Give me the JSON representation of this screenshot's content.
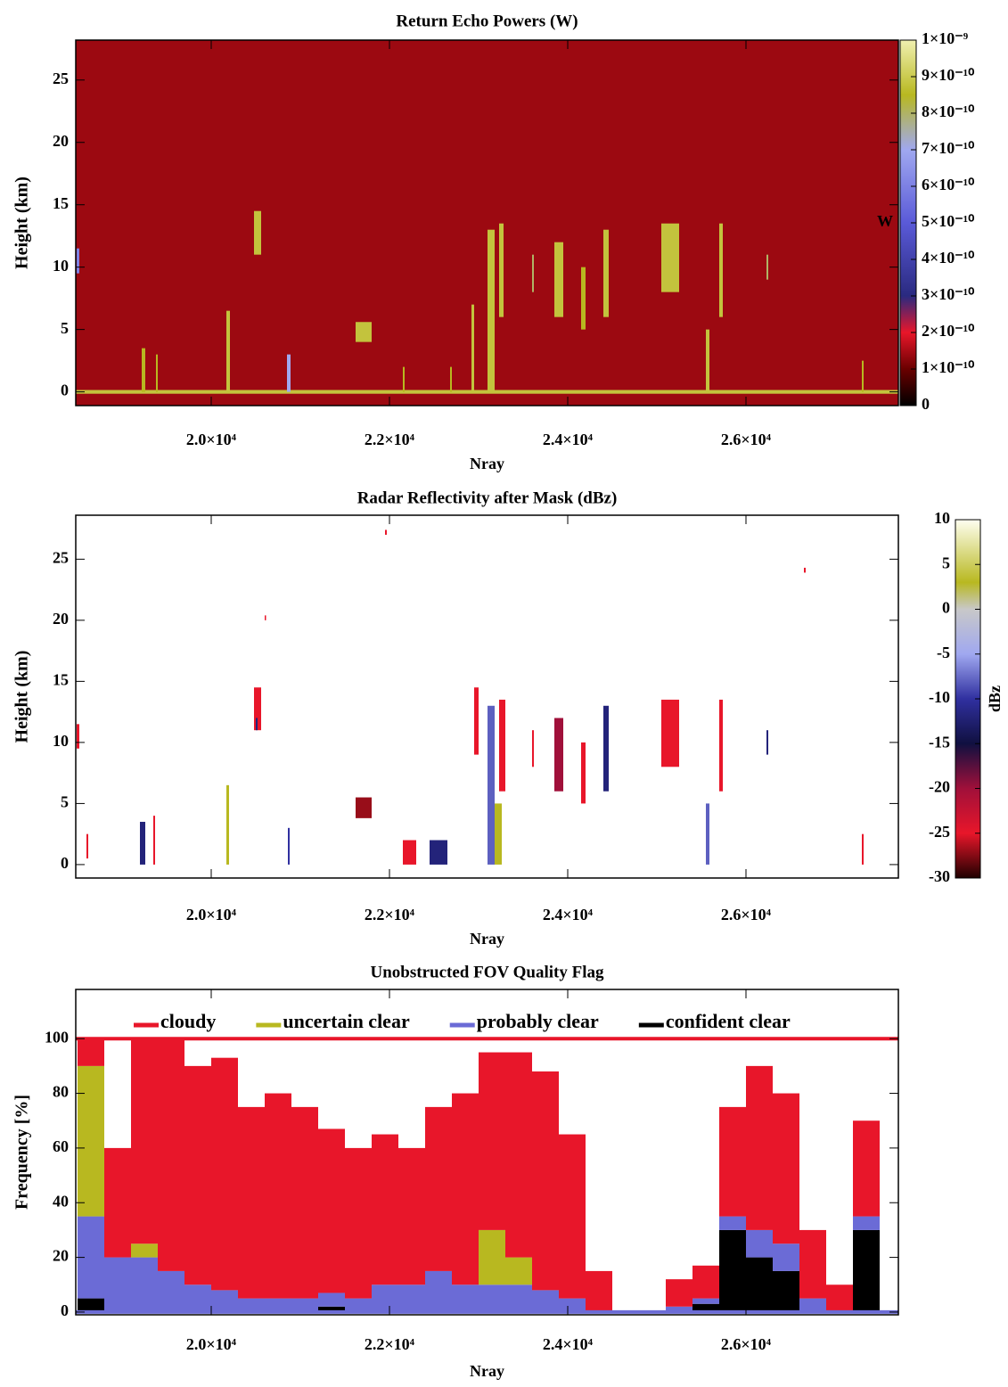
{
  "chart_data": [
    {
      "type": "heatmap",
      "title": "Return Echo Powers  (W)",
      "x_label": "Nray",
      "y_label": "Height (km)",
      "colorbar_label": "W",
      "xlim": [
        18480,
        27710
      ],
      "ylim": [
        -1.1,
        28.2
      ],
      "xticks": [
        {
          "value": 20000,
          "label": "2.0×10⁴"
        },
        {
          "value": 22000,
          "label": "2.2×10⁴"
        },
        {
          "value": 24000,
          "label": "2.4×10⁴"
        },
        {
          "value": 26000,
          "label": "2.6×10⁴"
        }
      ],
      "yticks": [
        0,
        5,
        10,
        15,
        20,
        25
      ],
      "clim": [
        0,
        1e-09
      ],
      "colorbar_ticks": [
        0,
        {
          "value": 1e-10,
          "label": "1×10⁻¹⁰"
        },
        {
          "value": 2e-10,
          "label": "2×10⁻¹⁰"
        },
        {
          "value": 3e-10,
          "label": "3×10⁻¹⁰"
        },
        {
          "value": 4e-10,
          "label": "4×10⁻¹⁰"
        },
        {
          "value": 5e-10,
          "label": "5×10⁻¹⁰"
        },
        {
          "value": 6e-10,
          "label": "6×10⁻¹⁰"
        },
        {
          "value": 7e-10,
          "label": "7×10⁻¹⁰"
        },
        {
          "value": 8e-10,
          "label": "8×10⁻¹⁰"
        },
        {
          "value": 9e-10,
          "label": "9×10⁻¹⁰"
        },
        {
          "value": 1e-09,
          "label": "1×10⁻⁹"
        }
      ],
      "colormap": {
        "values": [
          0,
          1e-10,
          2e-10,
          3e-10,
          5e-10,
          7e-10,
          8.5e-10,
          1e-09
        ],
        "colors": [
          "#000000",
          "#6a0000",
          "#e8162a",
          "#2a2a80",
          "#5a5ad8",
          "#a0a8f0",
          "#b8b820",
          "#f0f0b0"
        ]
      },
      "background": 1.4e-10,
      "cells": [
        [
          18480,
          27710,
          -0.15,
          0.15,
          8.8e-10
        ],
        [
          18490,
          18520,
          9.5,
          11.5,
          6e-10
        ],
        [
          19220,
          19260,
          0,
          3.5,
          8.5e-10
        ],
        [
          19380,
          19400,
          0,
          3,
          8.5e-10
        ],
        [
          20170,
          20210,
          0,
          6.5,
          8.8e-10
        ],
        [
          20480,
          20560,
          11,
          14.5,
          8.8e-10
        ],
        [
          20850,
          20890,
          0,
          3,
          7e-10
        ],
        [
          21620,
          21800,
          4,
          5.6,
          8.8e-10
        ],
        [
          22150,
          22170,
          0,
          2,
          8.5e-10
        ],
        [
          22680,
          22700,
          0,
          2,
          8.5e-10
        ],
        [
          22920,
          22950,
          0,
          7,
          8.8e-10
        ],
        [
          23100,
          23180,
          0,
          13,
          8.8e-10
        ],
        [
          23230,
          23280,
          6,
          13.5,
          8.8e-10
        ],
        [
          23600,
          23620,
          8,
          11,
          8e-10
        ],
        [
          23850,
          23950,
          6,
          12,
          8.8e-10
        ],
        [
          24150,
          24200,
          5,
          10,
          8.5e-10
        ],
        [
          24400,
          24460,
          6,
          13,
          8.8e-10
        ],
        [
          25050,
          25250,
          8,
          13.5,
          8.8e-10
        ],
        [
          25550,
          25590,
          0,
          5,
          8.8e-10
        ],
        [
          25700,
          25740,
          6,
          13.5,
          8.8e-10
        ],
        [
          26230,
          26250,
          9,
          11,
          8e-10
        ],
        [
          27300,
          27320,
          0,
          2.5,
          8.5e-10
        ]
      ]
    },
    {
      "type": "heatmap",
      "title": "Radar Reflectivity after Mask  (dBz)",
      "x_label": "Nray",
      "y_label": "Height (km)",
      "colorbar_label": "dBz",
      "xlim": [
        18480,
        27710
      ],
      "ylim": [
        -1.1,
        28.6
      ],
      "xticks": [
        {
          "value": 20000,
          "label": "2.0×10⁴"
        },
        {
          "value": 22000,
          "label": "2.2×10⁴"
        },
        {
          "value": 24000,
          "label": "2.4×10⁴"
        },
        {
          "value": 26000,
          "label": "2.6×10⁴"
        }
      ],
      "yticks": [
        0,
        5,
        10,
        15,
        20,
        25
      ],
      "clim": [
        -30,
        10
      ],
      "colorbar_ticks": [
        -30,
        -25,
        -20,
        -15,
        -10,
        -5,
        0,
        5,
        10
      ],
      "colormap": {
        "values": [
          -30,
          -25,
          -20,
          -15,
          -10,
          -5,
          0,
          3,
          10
        ],
        "colors": [
          "#200000",
          "#e8162a",
          "#a0103a",
          "#101040",
          "#3030a0",
          "#a0a8f0",
          "#c8c8c8",
          "#b8b820",
          "#fffff0"
        ]
      },
      "cells": [
        [
          18490,
          18520,
          9.5,
          11.5,
          -25
        ],
        [
          18600,
          18620,
          0.5,
          2.5,
          -25
        ],
        [
          19200,
          19260,
          0,
          3.5,
          -12
        ],
        [
          19350,
          19370,
          0,
          4,
          -25
        ],
        [
          20170,
          20200,
          0,
          6.5,
          3
        ],
        [
          20480,
          20560,
          11,
          14.5,
          -25
        ],
        [
          20500,
          20520,
          11,
          12,
          -12
        ],
        [
          20860,
          20880,
          0,
          3,
          -10
        ],
        [
          21620,
          21800,
          3.8,
          5.5,
          -27
        ],
        [
          22150,
          22300,
          0,
          2,
          -25
        ],
        [
          22450,
          22650,
          0,
          2,
          -12
        ],
        [
          22950,
          23000,
          9,
          14.5,
          -25
        ],
        [
          23100,
          23180,
          0,
          13,
          -8
        ],
        [
          23180,
          23260,
          0,
          5,
          3
        ],
        [
          23230,
          23300,
          6,
          13.5,
          -25
        ],
        [
          23600,
          23620,
          8,
          11,
          -25
        ],
        [
          23850,
          23950,
          6,
          12,
          -20
        ],
        [
          24150,
          24200,
          5,
          10,
          -25
        ],
        [
          24400,
          24460,
          6,
          13,
          -12
        ],
        [
          25050,
          25250,
          8,
          13.5,
          -25
        ],
        [
          25550,
          25590,
          0,
          5,
          -8
        ],
        [
          25700,
          25740,
          6,
          13.5,
          -25
        ],
        [
          26230,
          26250,
          9,
          11,
          -12
        ],
        [
          27300,
          27320,
          0,
          2.5,
          -25
        ],
        [
          21950,
          21970,
          27,
          27.4,
          -25
        ],
        [
          26650,
          26670,
          23.9,
          24.3,
          -25
        ],
        [
          20600,
          20610,
          20,
          20.4,
          -25
        ]
      ]
    },
    {
      "type": "histogram",
      "title": "Unobstructed FOV Quality Flag",
      "x_label": "Nray",
      "y_label": "Frequency [%]",
      "xlim": [
        18480,
        27710
      ],
      "ylim": [
        -1,
        118
      ],
      "xticks": [
        {
          "value": 20000,
          "label": "2.0×10⁴"
        },
        {
          "value": 22000,
          "label": "2.2×10⁴"
        },
        {
          "value": 24000,
          "label": "2.4×10⁴"
        },
        {
          "value": 26000,
          "label": "2.6×10⁴"
        }
      ],
      "yticks": [
        0,
        20,
        40,
        60,
        80,
        100
      ],
      "bins": [
        18500,
        18800,
        19100,
        19400,
        19700,
        20000,
        20300,
        20600,
        20900,
        21200,
        21500,
        21800,
        22100,
        22400,
        22700,
        23000,
        23300,
        23600,
        23900,
        24200,
        24500,
        24800,
        25100,
        25400,
        25700,
        26000,
        26300,
        26600,
        26900,
        27200,
        27500
      ],
      "series": [
        {
          "name": "cloudy",
          "color": "#e8162a",
          "values": [
            10,
            40,
            75,
            85,
            80,
            85,
            70,
            75,
            70,
            60,
            55,
            55,
            50,
            60,
            70,
            65,
            75,
            80,
            60,
            15,
            0,
            0,
            10,
            12,
            40,
            60,
            55,
            25,
            10,
            35
          ]
        },
        {
          "name": "uncertain clear",
          "color": "#b8b820",
          "values": [
            55,
            0,
            5,
            0,
            0,
            0,
            0,
            0,
            0,
            0,
            0,
            0,
            0,
            0,
            0,
            20,
            10,
            0,
            0,
            0,
            0,
            0,
            0,
            0,
            0,
            0,
            0,
            0,
            0,
            0
          ]
        },
        {
          "name": "probably clear",
          "color": "#6b6bd6",
          "values": [
            30,
            20,
            20,
            15,
            10,
            8,
            5,
            5,
            5,
            5,
            5,
            10,
            10,
            15,
            10,
            10,
            10,
            8,
            5,
            0,
            0,
            0,
            2,
            2,
            5,
            10,
            10,
            5,
            0,
            5
          ]
        },
        {
          "name": "confident clear",
          "color": "#000000",
          "values": [
            5,
            0,
            0,
            0,
            0,
            0,
            0,
            0,
            0,
            2,
            0,
            0,
            0,
            0,
            0,
            0,
            0,
            0,
            0,
            0,
            0,
            0,
            0,
            3,
            30,
            20,
            15,
            0,
            0,
            30
          ]
        }
      ],
      "reference_lines": [
        {
          "value": 100,
          "color": "#e8162a"
        },
        {
          "value": 0,
          "color": "#6b6bd6"
        }
      ]
    }
  ]
}
